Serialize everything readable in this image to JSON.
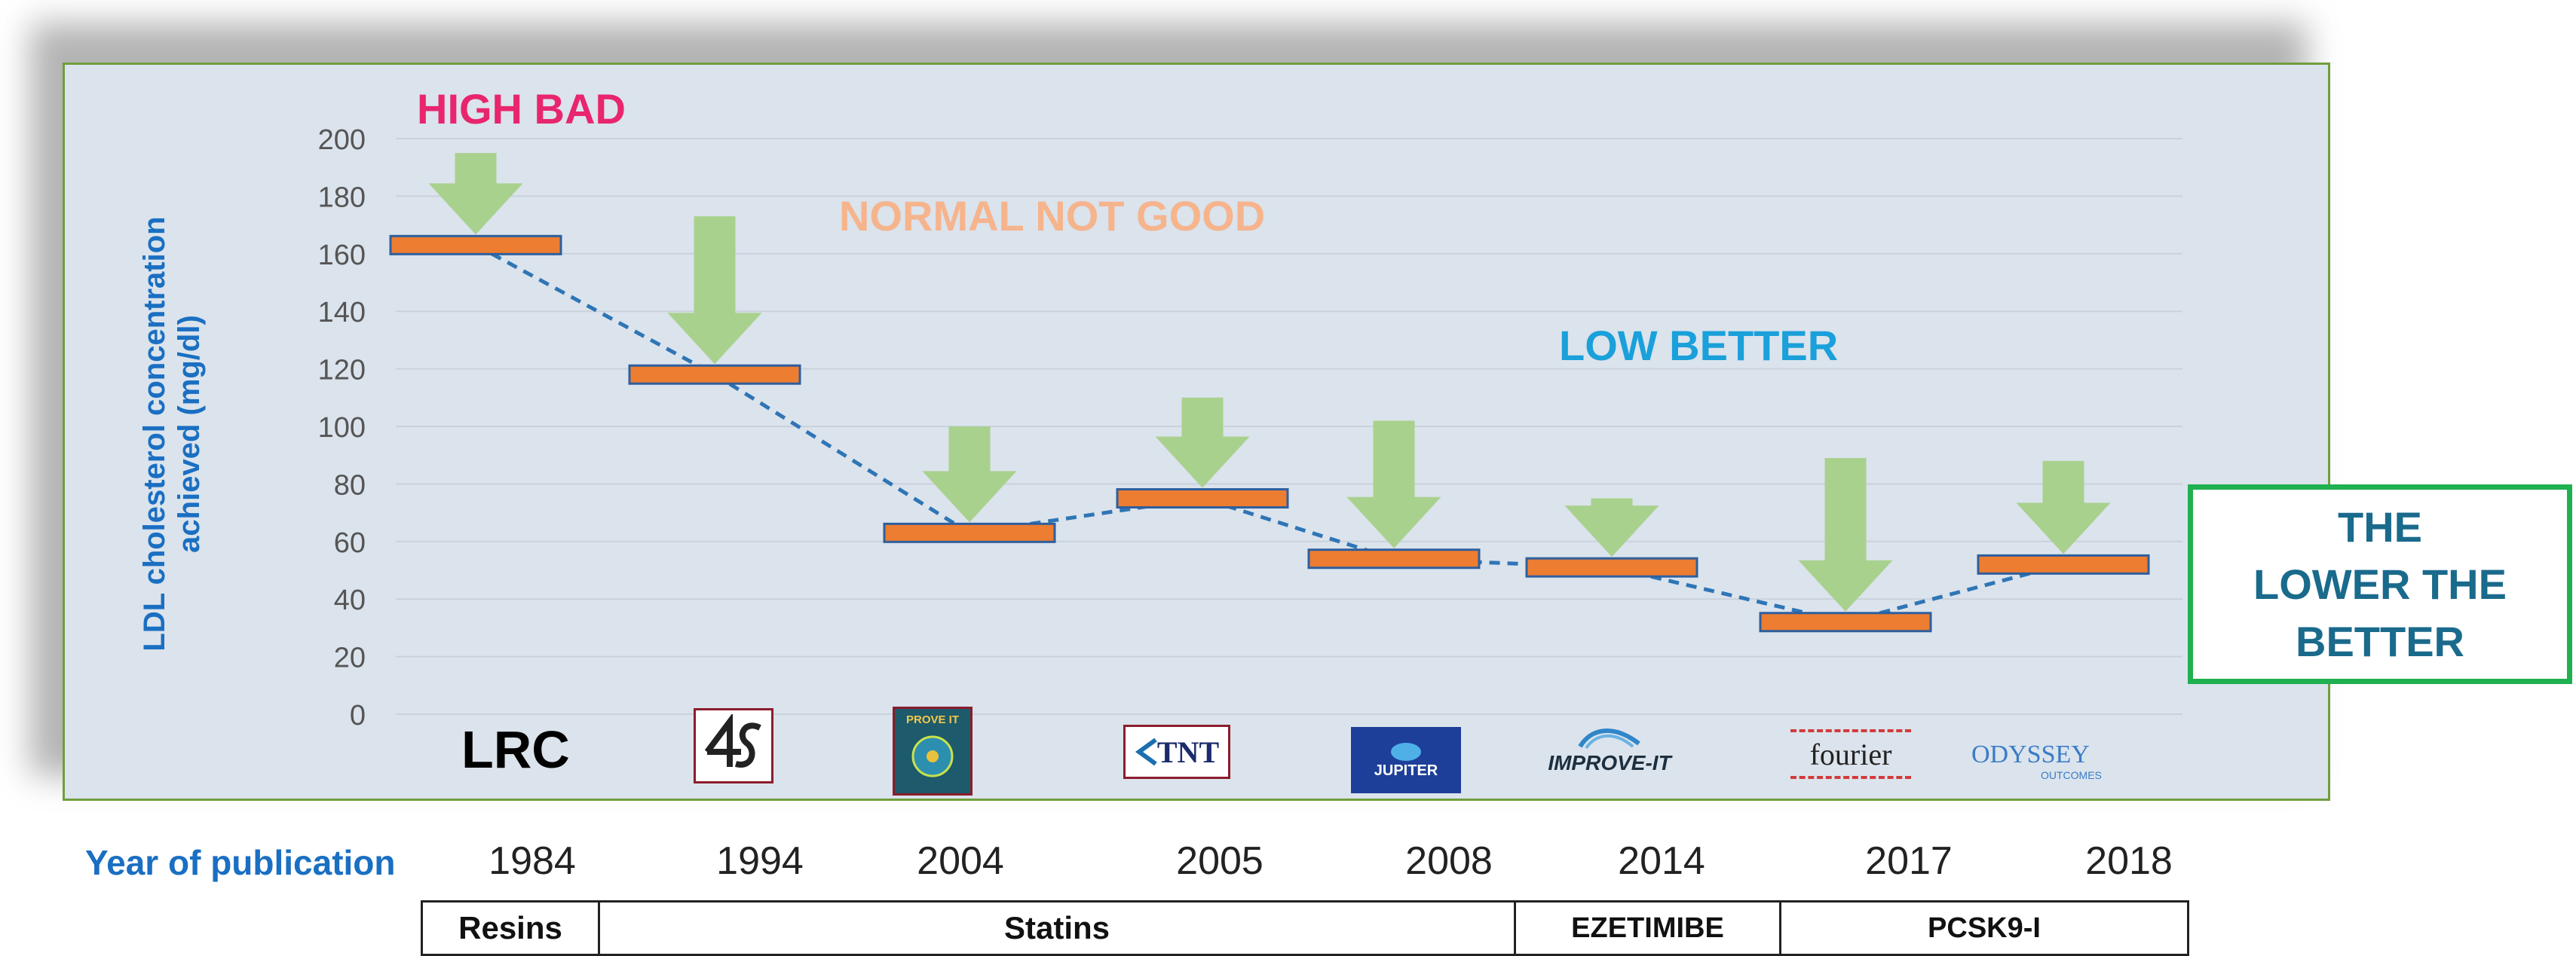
{
  "chart_data": {
    "type": "bar",
    "ylabel_lines": [
      "LDL cholesterol concentration",
      "achieved (mg/dl)"
    ],
    "ylim": [
      0,
      200
    ],
    "yticks": [
      "0",
      "20",
      "40",
      "60",
      "80",
      "100",
      "120",
      "140",
      "160",
      "180",
      "200"
    ],
    "trials": [
      "LRC",
      "4S",
      "PROVE IT",
      "TNT",
      "JUPITER",
      "IMPROVE-IT",
      "FOURIER",
      "ODYSSEY OUTCOMES"
    ],
    "years": [
      "1984",
      "1994",
      "2004",
      "2005",
      "2008",
      "2014",
      "2017",
      "2018"
    ],
    "ldl_achieved": [
      163,
      118,
      63,
      75,
      54,
      51,
      32,
      52
    ],
    "arrow_top": [
      195,
      173,
      100,
      110,
      102,
      75,
      89,
      88
    ],
    "trend_line": "dashed",
    "colors": {
      "bar": "#ed7d31",
      "bar_border": "#2e5f9e",
      "arrow": "#a9d18e",
      "trend": "#2e75b6"
    },
    "annotations": {
      "high": "HIGH BAD",
      "normal": "NORMAL NOT GOOD",
      "low": "LOW BETTER"
    }
  },
  "logos": {
    "lrc": "LRC",
    "prove_it": "PROVE IT",
    "tnt": "TNT",
    "jupiter": "JUPITER",
    "improve_it": "IMPROVE-IT",
    "fourier": "fourier",
    "odyssey": "ODYSSEY",
    "odyssey_sub": "OUTCOMES"
  },
  "year_axis_label": "Year of publication",
  "drug_classes": [
    {
      "label": "Resins",
      "color": "#fdf2d0"
    },
    {
      "label": "Statins",
      "color": "#ffc000"
    },
    {
      "label": "EZETIMIBE",
      "color": "#efefef"
    },
    {
      "label": "PCSK9-I",
      "color": "#f4b183"
    }
  ],
  "callout": {
    "line1": "THE",
    "line2": "LOWER THE",
    "line3": "BETTER"
  }
}
